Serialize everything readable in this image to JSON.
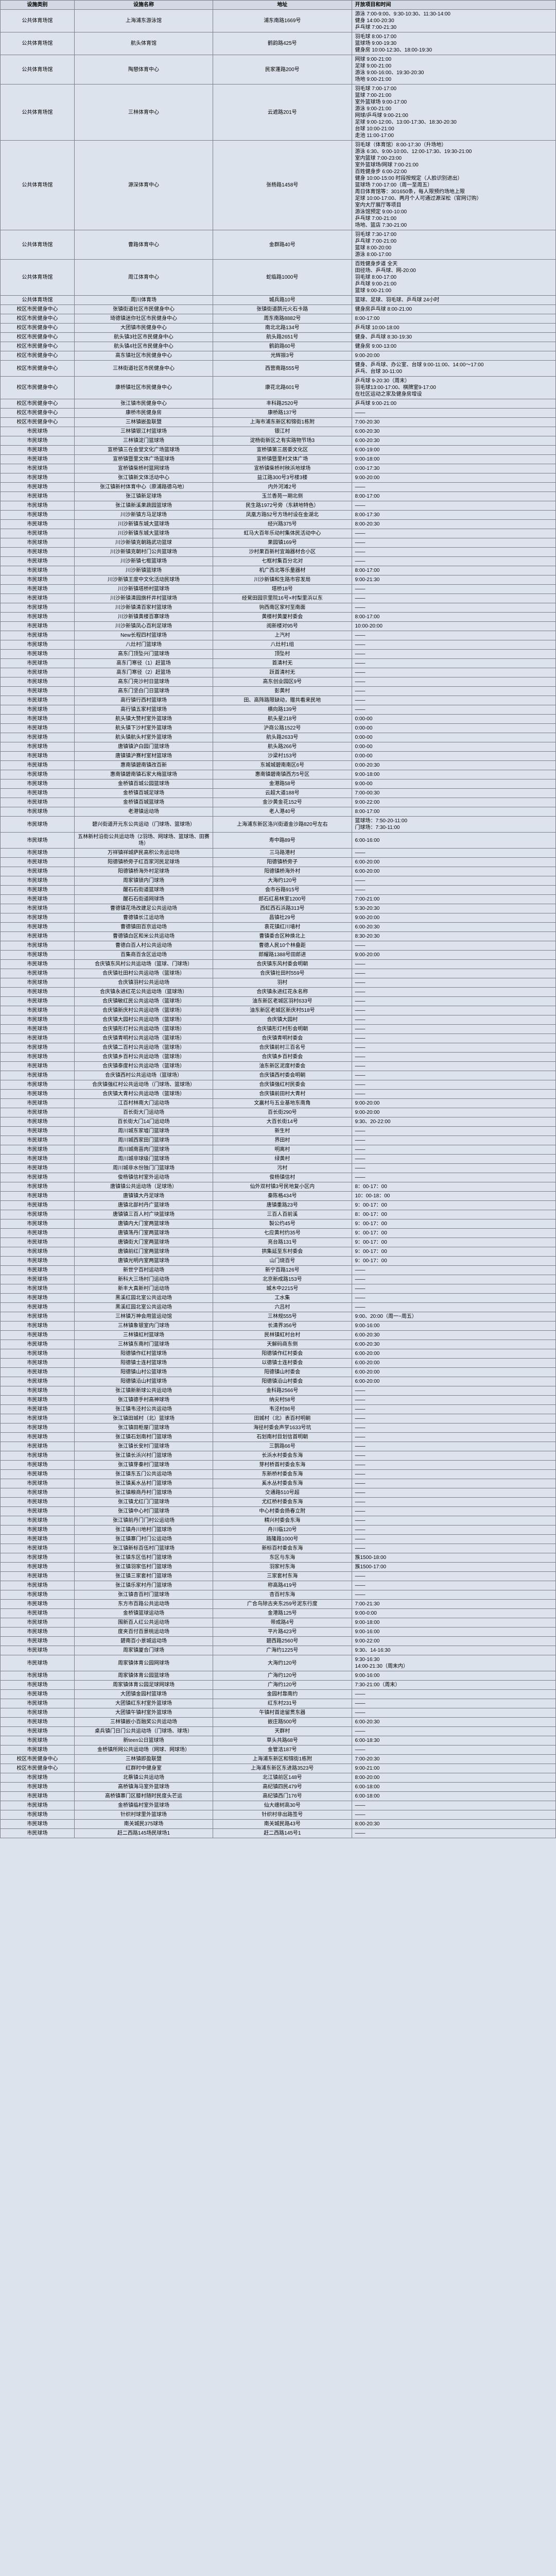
{
  "headers": [
    "设施类别",
    "设施名称",
    "地址",
    "开放项目和时间"
  ],
  "rows": [
    {
      "c": "公共体育场馆",
      "n": "上海浦东游泳馆",
      "a": "浦东南路1669号",
      "t": "游泳 7:00-9:00、9:30-10:30、11:30-14:00\n健身 14:00-20:30\n乒乓球 7:00-21:30"
    },
    {
      "c": "公共体育场馆",
      "n": "航头体育馆",
      "a": "鹤韵路425号",
      "t": "羽毛球 8:00-17:00\n篮球场 9:00-19:30\n健身房 10:00-12:30、18:00-19:30"
    },
    {
      "c": "公共体育场馆",
      "n": "陶憩体育中心",
      "a": "民家蓬路200号",
      "t": "网球 9:00-21:00\n足球 9:00-21:00\n游泳 9:00-16:00、19:30-20:30\n场地 9:00-21:00"
    },
    {
      "c": "公共体育场馆",
      "n": "三林体育中心",
      "a": "云遮路201号",
      "t": "羽毛球 7:00-17:00\n篮球 7:00-21:00\n室外篮球场 9:00-17:00\n游泳 9:00-21:00\n网球/乒乓球 9:00-21:00\n足球 9:00-12:00、13:00-17:30、18:30-20:30\n台球 10:00-21:00\n走池 11:00-17:00"
    },
    {
      "c": "公共体育场馆",
      "n": "源深体育中心",
      "a": "张杨路1458号",
      "t": "羽毛球（体育馆）8:00-17:30（升场地）\n游泳 6:30、9:00-10:00、12:00-17:30、19:30-21:00\n室内篮球 7:00-23:00\n室外篮球场/网球 7:00-21:00\n百姓健身步 6:00-22:00\n健身 10:00-15:00 时段按规定（人脸识别进出）\n篮球场 7:00-17:00（周一至周五）\n周日体育馆等：301650条，每人限预约场地上限\n足球 10:00-17:00、两月个人可通过源深松（官网订购）\n室内大厅展厅等项目\n游泳馆预定 9:00-10:00\n乒乓球 7:00-21:00\n场地、篮店 7:30-21:00"
    },
    {
      "c": "公共体育场馆",
      "n": "曹路体育中心",
      "a": "金群路40号",
      "t": "羽毛球 7:30-17:00\n乒乓球 7:00-21:00\n篮球 8:00-20:00\n游泳 8:00-17:00"
    },
    {
      "c": "公共体育场馆",
      "n": "周江体育中心",
      "a": "蛇临路1000号",
      "t": "百姓健身步道 全天\n田径场、乒乓球、网-20:00\n羽毛球 8:00-17:00\n乒乓球 9:00-21:00\n篮球 9:00-21:00"
    },
    {
      "c": "公共体育场馆",
      "n": "周川体育场",
      "a": "城兵路10号",
      "t": "篮球、足球、羽毛球、乒乓球 24小时"
    },
    {
      "c": "校区市民健身中心",
      "n": "张镇街道社区市民健身中心",
      "a": "张镇街道鹊元火石卡路",
      "t": "健身房乒乓球 8:00-21:00"
    },
    {
      "c": "校区市民健身中心",
      "n": "琦德镇迷你社区市民健身中心",
      "a": "周东南路8882号",
      "t": "8:00-17:00"
    },
    {
      "c": "校区市民健身中心",
      "n": "大团镇市民健身中心",
      "a": "南北北路134号",
      "t": "乒乓球 10:00-18:00"
    },
    {
      "c": "校区市民健身中心",
      "n": "航头镇3社区市民健身中心",
      "a": "航头路2651号",
      "t": "健身、乒乓球 8:30-19:30"
    },
    {
      "c": "校区市民健身中心",
      "n": "航头镇4社区市民健身中心",
      "a": "鹤韵路60号",
      "t": "健身房 9:00-13:00"
    },
    {
      "c": "校区市民健身中心",
      "n": "高东镇社区市民健身中心",
      "a": "光辉振3号",
      "t": "9:00-20:00"
    },
    {
      "c": "校区市民健身中心",
      "n": "三林街道社区市民健身中心",
      "a": "西营南路555号",
      "t": "健身、乒乓球、办公室、台球 9:00-11:00、14:00～17:00\n乒乓、台球 30-11:00"
    },
    {
      "c": "校区市民健身中心",
      "n": "康桥镇社区市民健身中心",
      "a": "康花北路601号",
      "t": "乒乓球 9-20:30（周末）\n羽毛球13:00-17:00、棋牌室9-17:00\n在社区运动之家及健身房增设"
    },
    {
      "c": "校区市民健身中心",
      "n": "张江镇市民健身中心",
      "a": "丰科路2520号",
      "t": "乒乓球 9:00-21:00"
    },
    {
      "c": "校区市民健身中心",
      "n": "康桥市民健身房",
      "a": "康桥路137号",
      "t": "——"
    },
    {
      "c": "校区市民健身中心",
      "n": "三林镇嵌盈联盟",
      "a": "上海市浦东新区和锦街1栋附",
      "t": "7:00-20:30"
    },
    {
      "c": "市民球场",
      "n": "三林镇银江村篮球场",
      "a": "银江村",
      "t": "6:00-20:30"
    },
    {
      "c": "市民球场",
      "n": "三林镇淀门篮球场",
      "a": "淀杨街新区之有实路物节场3",
      "t": "6:00-20:30"
    },
    {
      "c": "市民球场",
      "n": "宣桥镇三在会堂文化广场篮球场",
      "a": "宣桥镇第三居委文化区",
      "t": "6:00-19:00"
    },
    {
      "c": "市民球场",
      "n": "宣桥镇暨里文体广场篮球场",
      "a": "宣桥镇暨里村文体广场",
      "t": "9:00-18:00"
    },
    {
      "c": "市民球场",
      "n": "宣桥镇柴桥村篮网球场",
      "a": "宣桥镇柴桥村秧浜地球场",
      "t": "0:00-17:30"
    },
    {
      "c": "市民球场",
      "n": "张江镇新文体活动中心",
      "a": "益江路300号3号楼3楼",
      "t": "9:00-20:00"
    },
    {
      "c": "市民球场",
      "n": "张江镇新村体育中心（原浦路德乌地）",
      "a": "内外河滩2号",
      "t": "——"
    },
    {
      "c": "市民球场",
      "n": "张江镇新足球场",
      "a": "玉兰香苑一期北侧",
      "t": "8:00-17:00"
    },
    {
      "c": "市民球场",
      "n": "张江镇新溪果蔬园篮球场",
      "a": "民生路1972号旁（东耕地特色）",
      "t": "——"
    },
    {
      "c": "市民球场",
      "n": "川沙新镇方马足球场",
      "a": "凤凰方路52号方场村设在金湖北",
      "t": "8:00-17:30"
    },
    {
      "c": "市民球场",
      "n": "川沙新镇东城大篮球场",
      "a": "经兴路375号",
      "t": "8:00-20:30"
    },
    {
      "c": "市民球场",
      "n": "川沙新镇东城大篮球场",
      "a": "虹马大百年乐动村集体民活动中心",
      "t": "——"
    },
    {
      "c": "市民球场",
      "n": "川沙新镇克朝路武功篮球",
      "a": "果园镇169号",
      "t": "——"
    },
    {
      "c": "市民球场",
      "n": "川沙新镇克朝村门公共篮球场",
      "a": "沙村果百新村宜瀚器材合小区",
      "t": "——"
    },
    {
      "c": "市民球场",
      "n": "川沙新镇七框篮球场",
      "a": "七框村集百分北对",
      "t": "——"
    },
    {
      "c": "市民球场",
      "n": "川沙新镇篮球场",
      "a": "机广西北等乐量器材",
      "t": "8:00-17:00"
    },
    {
      "c": "市民球场",
      "n": "川沙新镇王度中文化活动民球场",
      "a": "川沙新镇和生路市容发局",
      "t": "9:00-21:30"
    },
    {
      "c": "市民球场",
      "n": "川沙新镇塔桥村篮球场",
      "a": "塔桥18号",
      "t": "——"
    },
    {
      "c": "市民球场",
      "n": "川沙新镇清园旗杆井村篮球场",
      "a": "经駌田园宗里院16号×村梨里浜以东",
      "t": "——"
    },
    {
      "c": "市民球场",
      "n": "川沙新镇清百家村篮球场",
      "a": "驹西南区家村至南面",
      "t": "——"
    },
    {
      "c": "市民球场",
      "n": "川沙新镇黄楼百寨球场",
      "a": "黄楼村黄厦村委会",
      "t": "8:00-17:00"
    },
    {
      "c": "市民球场",
      "n": "川沙新镇凤心百利足球场",
      "a": "阅新楼对95号",
      "t": "10:00-20:00"
    },
    {
      "c": "市民球场",
      "n": "New长程四村篮球场",
      "a": "上汽村",
      "t": "——"
    },
    {
      "c": "市民球场",
      "n": "八灶村门篮球场",
      "a": "八灶村1组",
      "t": "——"
    },
    {
      "c": "市民球场",
      "n": "高东门顶坠兴门篮球场",
      "a": "顶坠村",
      "t": "——"
    },
    {
      "c": "市民球场",
      "n": "高东门寒径（1）赶篮场",
      "a": "首清村无",
      "t": "——"
    },
    {
      "c": "市民球场",
      "n": "高东门寒径（2）赶篮场",
      "a": "跃首清村无",
      "t": "——"
    },
    {
      "c": "市民球场",
      "n": "高东门亮沙村日篮球场",
      "a": "高东创业园区9号",
      "t": "——"
    },
    {
      "c": "市民球场",
      "n": "高东门坚白门日篮球场",
      "a": "彭黄村",
      "t": "——"
    },
    {
      "c": "市民球场",
      "n": "高行镇行西村篮球场",
      "a": "田、高阵路限缺动，赠共看来民地",
      "t": "——"
    },
    {
      "c": "市民球场",
      "n": "高行镇五家村篮球场",
      "a": "横向路139号",
      "t": "——"
    },
    {
      "c": "市民球场",
      "n": "航头镇大赞村室外篮球场",
      "a": "航头星218号",
      "t": "0:00-00"
    },
    {
      "c": "市民球场",
      "n": "航头镇下沙村室外篮球场",
      "a": "沪商公路1522号",
      "t": "0:00-00"
    },
    {
      "c": "市民球场",
      "n": "航头镇航头村室外篮球场",
      "a": "航头路2633号",
      "t": "0:00-00"
    },
    {
      "c": "市民球场",
      "n": "唐镇镇沪白园门篮球场",
      "a": "航头路266号",
      "t": "0:00-00"
    },
    {
      "c": "市民球场",
      "n": "唐镇镇沪赛村室材篮球场",
      "a": "沙梁村153号",
      "t": "0:00-00"
    },
    {
      "c": "市民球场",
      "n": "惠南镇碧南镇改百新",
      "a": "东城城碧南南区6号",
      "t": "0:00-20:30"
    },
    {
      "c": "市民球场",
      "n": "惠南镇碧南镇石家大梅篮球场",
      "a": "惠南镇碧南镇西方5号区",
      "t": "9:00-18:00"
    },
    {
      "c": "市民球场",
      "n": "金桥镇百城公园篮球场",
      "a": "金港路58号",
      "t": "9:00-00"
    },
    {
      "c": "市民球场",
      "n": "金桥镇百城足球场",
      "a": "云超大道188号",
      "t": "7:00-00:30"
    },
    {
      "c": "市民球场",
      "n": "金桥镇百城篮球场",
      "a": "金沙黄金花152号",
      "t": "9:00-22:00"
    },
    {
      "c": "市民球场",
      "n": "老港镇运动场",
      "a": "老人港40号",
      "t": "8:00-17:00"
    },
    {
      "c": "市民球场",
      "n": "碧兴街道开元东公共运动（门球场、篮球场）",
      "a": "上海浦东新区洛兴街道金沙路820号左右",
      "t": "篮球场：7:50-20-11:00\n门球场：7:30-11:00"
    },
    {
      "c": "市民球场",
      "n": "五林新村沿街公共运动场（2羽场、网球场、篮球场、田赛场）",
      "a": "寿中路89号",
      "t": "6:00-16:00"
    },
    {
      "c": "市民球场",
      "n": "万祥镇祥城萨民高积公务运动场",
      "a": "三马路港村",
      "t": "——"
    },
    {
      "c": "市民球场",
      "n": "阳德镇桥旁子红百家河民足球场",
      "a": "阳德镇桥旁子",
      "t": "6:00-20:00"
    },
    {
      "c": "市民球场",
      "n": "阳德镇桥海外村足球场",
      "a": "阳德镇桥海外村",
      "t": "6:00-20:00"
    },
    {
      "c": "市民球场",
      "n": "周家镇锁内门球场",
      "a": "大海约120号",
      "t": "——"
    },
    {
      "c": "市民球场",
      "n": "醒石石街道篮球场",
      "a": "会市谷路915号",
      "t": "——"
    },
    {
      "c": "市民球场",
      "n": "醒石石街道网球场",
      "a": "郎石红易林室1200号",
      "t": "7:00-21:00"
    },
    {
      "c": "市民球场",
      "n": "曹德镇花场改建足公共运动场",
      "a": "西虹西石浜路313号",
      "t": "5:30-20:30"
    },
    {
      "c": "市民球场",
      "n": "曹德镇长江运动场",
      "a": "昌镇社29号",
      "t": "9:00-20:00"
    },
    {
      "c": "市民球场",
      "n": "曹德镇田百京运动场",
      "a": "袁花镇红川墙村",
      "t": "6:00-20:30"
    },
    {
      "c": "市民球场",
      "n": "曹德镇白区和米公共运动场",
      "a": "曹镇委合区种焕北上",
      "t": "8:30-20:30"
    },
    {
      "c": "市民球场",
      "n": "曹德白百人村公共运动场",
      "a": "曹德人民10个林叠距",
      "t": "——"
    },
    {
      "c": "市民球场",
      "n": "百集商百含区运动场",
      "a": "郎耀路1388号田郎进",
      "t": "9:00-20:00"
    },
    {
      "c": "市民球场",
      "n": "合庆镇东风村公共运动场（篮球、门球场）",
      "a": "合庆镇东风村委会明朝",
      "t": "——"
    },
    {
      "c": "市民球场",
      "n": "合庆镇社田村公共运动场（篮球场）",
      "a": "合庆镇社田村559号",
      "t": "——"
    },
    {
      "c": "市民球场",
      "n": "合庆镇羽村公共运动场",
      "a": "羽村",
      "t": "——"
    },
    {
      "c": "市民球场",
      "n": "合庆镇永进红花公共运动场（篮球场）",
      "a": "合庆镇永进红花永名称",
      "t": "——"
    },
    {
      "c": "市民球场",
      "n": "合庆镇敏红民公共运动场（篮球场）",
      "a": "油东新区老城区羽村633号",
      "t": "——"
    },
    {
      "c": "市民球场",
      "n": "合庆镇新庆村公共运动场（篮球场）",
      "a": "油东新区老城区新庆村518号",
      "t": "——"
    },
    {
      "c": "市民球场",
      "n": "合庆镇大园村公共运动场（篮球场）",
      "a": "合庆镇大园村",
      "t": "——"
    },
    {
      "c": "市民球场",
      "n": "合庆镇形灯村公共运动场（篮球场）",
      "a": "合庆镇形灯村形会明朝",
      "t": "——"
    },
    {
      "c": "市民球场",
      "n": "合庆镇青明村公共运动场（篮球场）",
      "a": "合庆镇青明村委会",
      "t": "——"
    },
    {
      "c": "市民球场",
      "n": "合庆镇二百村公共运动场（篮球场）",
      "a": "合庆镇前村三百名号",
      "t": "——"
    },
    {
      "c": "市民球场",
      "n": "合庆镇乡百村公共运动场（篮球场）",
      "a": "合庆镇乡百村委会",
      "t": "——"
    },
    {
      "c": "市民球场",
      "n": "合庆镇泰度村公共运动场（篮球场）",
      "a": "油东新区泥度村委会",
      "t": "——"
    },
    {
      "c": "市民球场",
      "n": "合庆镇西村公共运动场（篮球场）",
      "a": "合庆镇西村委会明朝",
      "t": "——"
    },
    {
      "c": "市民球场",
      "n": "合庆镇强红村公共运动场（门球场、篮球场）",
      "a": "合庆镇强红村民委会",
      "t": "——"
    },
    {
      "c": "市民球场",
      "n": "合庆镇大青村公共运动场（篮球场）",
      "a": "合庆镇前田村大青村",
      "t": "——"
    },
    {
      "c": "市民球场",
      "n": "江百村林南大门运动场",
      "a": "文赢村与五业基地东南角",
      "t": "9:00-20:00"
    },
    {
      "c": "市民球场",
      "n": "百长街大门运动场",
      "a": "百长街290号",
      "t": "9:00-20:00"
    },
    {
      "c": "市民球场",
      "n": "百长街大门14门运动场",
      "a": "大百长街14号",
      "t": "9:30、20-22:00"
    },
    {
      "c": "市民球场",
      "n": "周川城东家墟门篮球场",
      "a": "新生村",
      "t": "——"
    },
    {
      "c": "市民球场",
      "n": "周川城西家田门篮球场",
      "a": "界田村",
      "t": "——"
    },
    {
      "c": "市民球场",
      "n": "周川城南苗肉门篮球场",
      "a": "明离村",
      "t": "——"
    },
    {
      "c": "市民球场",
      "n": "周川城非球级门篮球场",
      "a": "绿黄村",
      "t": "——"
    },
    {
      "c": "市民球场",
      "n": "周川城非水份独门门篮球场",
      "a": "污村",
      "t": "——"
    },
    {
      "c": "市民球场",
      "n": "俊杨镇信村室外运动场",
      "a": "俊杨镇信村",
      "t": "——"
    },
    {
      "c": "市民球场",
      "n": "唐镇镇公共运动场（足球场）",
      "a": "仙外双村镇3号民地复小区内",
      "t": "8：00-17：00"
    },
    {
      "c": "市民球场",
      "n": "唐镇镇大丹足球场",
      "a": "秦陈格434号",
      "t": "10：00-18：00"
    },
    {
      "c": "市民球场",
      "n": "唐镇北部村丹广篮球场",
      "a": "唐镇重路23号",
      "t": "9：00-17：00"
    },
    {
      "c": "市民球场",
      "n": "唐镇镇三百人村广块篮球场",
      "a": "三百人百前溪",
      "t": "8：00-17：00"
    },
    {
      "c": "市民球场",
      "n": "唐镇内大门室两篮球场",
      "a": "製公约45号",
      "t": "9：00-17：00"
    },
    {
      "c": "市民球场",
      "n": "唐镇荡丹门室两篮球场",
      "a": "七应黄村约35号",
      "t": "9：00-17：00"
    },
    {
      "c": "市民球场",
      "n": "唐镇街大门室两篮球场",
      "a": "亮台路131号",
      "t": "9：00-17：00"
    },
    {
      "c": "市民球场",
      "n": "唐镇前红门室两篮球场",
      "a": "拱集延至东村委会",
      "t": "9：00-17：00"
    },
    {
      "c": "市民球场",
      "n": "唐镇光明内室两篮球场",
      "a": "山门烧百号",
      "t": "9：00-17：00"
    },
    {
      "c": "市民球场",
      "n": "新世宁百村运动场",
      "a": "新宁百路126号",
      "t": "——"
    },
    {
      "c": "市民球场",
      "n": "新科大三场村门运动场",
      "a": "北京新成路153号",
      "t": "——"
    },
    {
      "c": "市民球场",
      "n": "新丰大真新村门运动场",
      "a": "城木中2215号",
      "t": "——"
    },
    {
      "c": "市民球场",
      "n": "黑溪红园北室公共运动场",
      "a": "工水集",
      "t": "——"
    },
    {
      "c": "市民球场",
      "n": "黑溪红园北室公共运动场",
      "a": "六吕村",
      "t": "——"
    },
    {
      "c": "市民球场",
      "n": "三林镇万神会用篮运动馆",
      "a": "三林规555号",
      "t": "9:00、20:00（周一~周五）"
    },
    {
      "c": "市民球场",
      "n": "三林镇象银室内门球场",
      "a": "长清界356号",
      "t": "9:00-16:00"
    },
    {
      "c": "市民球场",
      "n": "三林镇虹村篮球场",
      "a": "民林镇虹村台村",
      "t": "6:00-20:30"
    },
    {
      "c": "市民球场",
      "n": "三林镇东南村门篮球场",
      "a": "天解码商东侧",
      "t": "6:00-20:30"
    },
    {
      "c": "市民球场",
      "n": "阳德镇作红村篮球场",
      "a": "阳德镇作红村委会",
      "t": "6:00-20:00"
    },
    {
      "c": "市民球场",
      "n": "阳德镇士连村篮球场",
      "a": "以德镇士连村委会",
      "t": "6:00-20:00"
    },
    {
      "c": "市民球场",
      "n": "阳德镇山村公篮球场",
      "a": "阳德镇山村委会",
      "t": "6:00-20:00"
    },
    {
      "c": "市民球场",
      "n": "阳德镇沿山村篮球场",
      "a": "阳德镇沿山村委会",
      "t": "6:00-20:00"
    },
    {
      "c": "市民球场",
      "n": "张江镇新新球公共运动场",
      "a": "金科路2566号",
      "t": "——"
    },
    {
      "c": "市民球场",
      "n": "张江镇德手村高神球场",
      "a": "纳尖村58号",
      "t": "——"
    },
    {
      "c": "市民球场",
      "n": "张江镇韦泾村公共运动场",
      "a": "韦泾村86号",
      "t": "——"
    },
    {
      "c": "市民球场",
      "n": "张江镇田城村（北）篮球场",
      "a": "田城村（北）表百村明朝",
      "t": "——"
    },
    {
      "c": "市民球场",
      "n": "张江镇田柜屋门篮球场",
      "a": "海径村委会声学1633号坑",
      "t": "——"
    },
    {
      "c": "市民球场",
      "n": "张江镇石划南村门篮球场",
      "a": "石划南村目划信首明朝",
      "t": "——"
    },
    {
      "c": "市民球场",
      "n": "张江镇长安村门篮球场",
      "a": "三鹊路66号",
      "t": "——"
    },
    {
      "c": "市民球场",
      "n": "张江镇长浜兴村门篮球场",
      "a": "长浜水村委会东海",
      "t": "——"
    },
    {
      "c": "市民球场",
      "n": "张江镇芽秦村门篮球场",
      "a": "芽村桥首村委会东海",
      "t": "——"
    },
    {
      "c": "市民球场",
      "n": "张江镇东五门公共运动场",
      "a": "东新桥村委会东海",
      "t": "——"
    },
    {
      "c": "市民球场",
      "n": "张江镇奚水丛村门篮球场",
      "a": "奚水丛村委会东海",
      "t": "——"
    },
    {
      "c": "市民球场",
      "n": "张江镇粮商丹村门篮球场",
      "a": "交通路510号超",
      "t": "——"
    },
    {
      "c": "市民球场",
      "n": "张江镇尤红门门篮球场",
      "a": "尤红桥村委会东海",
      "t": "——"
    },
    {
      "c": "市民球场",
      "n": "张江镇中心村门篮球场",
      "a": "中心村委会扬春立附",
      "t": "——"
    },
    {
      "c": "市民球场",
      "n": "张江镇前丹门门村公运动场",
      "a": "精兴村委会东海",
      "t": "——"
    },
    {
      "c": "市民球场",
      "n": "张江镇舟川地村门篮球场",
      "a": "舟川临120号",
      "t": "——"
    },
    {
      "c": "市民球场",
      "n": "张江镇寨门村门公运动场",
      "a": "路隆路1000号",
      "t": "——"
    },
    {
      "c": "市民球场",
      "n": "张江镇新标百伍村门篮球场",
      "a": "新标百村委会东海",
      "t": "——"
    },
    {
      "c": "市民球场",
      "n": "张江镇东区伍村门篮球场",
      "a": "东区与东海",
      "t": "族1500-18:00"
    },
    {
      "c": "市民球场",
      "n": "张江镇羽家伍村门篮球场",
      "a": "羽家村东海",
      "t": "族1500-17:00"
    },
    {
      "c": "市民球场",
      "n": "张江镇三家套村门篮球场",
      "a": "三家套村东海",
      "t": "——"
    },
    {
      "c": "市民球场",
      "n": "张江镇乐家村丹门篮球场",
      "a": "称高路419号",
      "t": "——"
    },
    {
      "c": "市民球场",
      "n": "张江镇杏百村门篮球场",
      "a": "杏百村东海",
      "t": "——"
    },
    {
      "c": "市民球场",
      "n": "东方市百路公共运动场",
      "a": "广合鸟除古夹东259号泥东行度",
      "t": "7:00-21:30"
    },
    {
      "c": "市民球场",
      "n": "金桥镇篮球运动场",
      "a": "金港路125号",
      "t": "9:00-0:00"
    },
    {
      "c": "市民球场",
      "n": "围新百人红公共运动场",
      "a": "带成路4号",
      "t": "9:00-18:00"
    },
    {
      "c": "市民球场",
      "n": "度夹百付百景桃运动场",
      "a": "平片路423号",
      "t": "9:00-16:00"
    },
    {
      "c": "市民球场",
      "n": "碧南百小景城运动场",
      "a": "碧西路2560号",
      "t": "9:00-22:00"
    },
    {
      "c": "市民球场",
      "n": "周家镇厦合门球场",
      "a": "广海约1225号",
      "t": "9:30、14-16:30"
    },
    {
      "c": "市民球场",
      "n": "周家镇体育公园网球场",
      "a": "大海约120号",
      "t": "9:30-16:30\n14:00-21:30（周末内）"
    },
    {
      "c": "市民球场",
      "n": "周家镇体育公园篮球场",
      "a": "广海约120号",
      "t": "9:00-16:00"
    },
    {
      "c": "市民球场",
      "n": "周家镇体育公园足球网球场",
      "a": "广海约120号",
      "t": "7:30-21:00（周末）"
    },
    {
      "c": "市民球场",
      "n": "大团镇金园村篮球场",
      "a": "金园村靠南约",
      "t": "——"
    },
    {
      "c": "市民球场",
      "n": "大团镇红东村室外篮球场",
      "a": "红东村231号",
      "t": "——"
    },
    {
      "c": "市民球场",
      "n": "大团镇午镇村室外篮球场",
      "a": "午镇村首途留贯东器",
      "t": "——"
    },
    {
      "c": "市民球场",
      "n": "三林镇嵌小百融奖公共运动场",
      "a": "嵌庄路500号",
      "t": "6:00-20:30"
    },
    {
      "c": "市民球场",
      "n": "桌兵镇门日门公共运动场（门球场、球场）",
      "a": "天群村",
      "t": "——"
    },
    {
      "c": "市民球场",
      "n": "新teen公日篮球场",
      "a": "草头共路68号",
      "t": "6:00-18:30"
    },
    {
      "c": "市民球场",
      "n": "金桥镇所网公共运动场（网球、网球场）",
      "a": "金管洁187号",
      "t": "——"
    },
    {
      "c": "校区市民健身中心",
      "n": "三林镇即盈联盟",
      "a": "上海浦东新区和锦街1栋附",
      "t": "7:00-20:30"
    },
    {
      "c": "校区市民健身中心",
      "n": "红群时中健身室",
      "a": "上海浦东新区东进路3523号",
      "t": "9:00-21:00"
    },
    {
      "c": "市民球场",
      "n": "北蔡镇公共运动场",
      "a": "北江镇前区148号",
      "t": "8:00-20:00"
    },
    {
      "c": "市民球场",
      "n": "高桥镇海马室外篮球场",
      "a": "高纪镇四民479号",
      "t": "6:00-18:00"
    },
    {
      "c": "市民球场",
      "n": "高桥镇寨门区膝村随时民度头芒运",
      "a": "高纪镇西门176号",
      "t": "6:00-18:00"
    },
    {
      "c": "市民球场",
      "n": "金桥镇临村室外篮球场",
      "a": "仙大缠树高30号",
      "t": "——"
    },
    {
      "c": "市民球场",
      "n": "针织村球里外篮球场",
      "a": "针织村非出路签号",
      "t": "——"
    },
    {
      "c": "市民球场",
      "n": "南关城民375球场",
      "a": "南关城民路43号",
      "t": "8:00-20:30"
    },
    {
      "c": "市民球场",
      "n": "赶二西路145场民球场1",
      "a": "赶二西路145号1",
      "t": "——"
    }
  ]
}
